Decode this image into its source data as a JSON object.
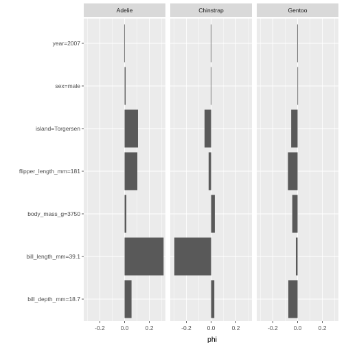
{
  "chart_data": {
    "type": "bar",
    "orientation": "horizontal",
    "facets": [
      "Adelie",
      "Chinstrap",
      "Gentoo"
    ],
    "categories": [
      "year=2007",
      "sex=male",
      "island=Torgersen",
      "flipper_length_mm=181",
      "body_mass_g=3750",
      "bill_length_mm=39.1",
      "bill_depth_mm=18.7"
    ],
    "series": [
      {
        "facet": "Adelie",
        "values": [
          -0.003,
          0.008,
          0.108,
          0.103,
          0.014,
          0.315,
          0.056
        ]
      },
      {
        "facet": "Chinstrap",
        "values": [
          -0.003,
          -0.003,
          -0.053,
          -0.02,
          0.03,
          -0.297,
          0.026
        ]
      },
      {
        "facet": "Gentoo",
        "values": [
          -0.003,
          -0.001,
          -0.052,
          -0.078,
          -0.043,
          -0.014,
          -0.075
        ]
      }
    ],
    "xlabel": "phi",
    "ylabel": "",
    "xlim": [
      -0.33,
      0.33
    ],
    "xticks": [
      -0.2,
      0.0,
      0.2
    ],
    "xtick_labels": [
      "-0.2",
      "0.0",
      "0.2"
    ],
    "grid": true,
    "legend": "none",
    "colors": {
      "bar": "#595959",
      "panel": "#ebebeb",
      "strip": "#d9d9d9",
      "grid": "#ffffff"
    }
  }
}
